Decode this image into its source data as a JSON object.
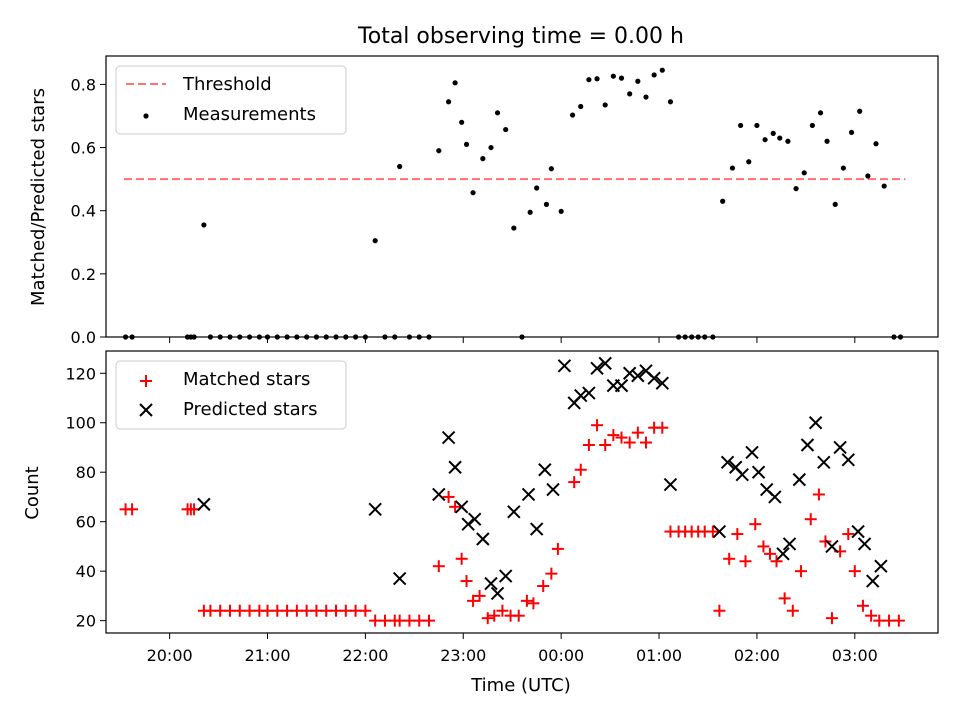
{
  "chart_data": [
    {
      "type": "scatter",
      "title": "Total observing time = 0.00 h",
      "ylabel": "Matched/Predicted stars",
      "xlabel": "",
      "xlim": [
        "19:21",
        "03:51"
      ],
      "ylim": [
        0,
        0.89
      ],
      "yticks": [
        0.0,
        0.2,
        0.4,
        0.6,
        0.8
      ],
      "ytick_labels": [
        "0.0",
        "0.2",
        "0.4",
        "0.6",
        "0.8"
      ],
      "legend": {
        "placement": "top-left",
        "entries": [
          "Threshold",
          "Measurements"
        ]
      },
      "threshold": {
        "name": "Threshold",
        "value": 0.5,
        "x_range": [
          "19:32",
          "03:31"
        ],
        "color": "#ff7070",
        "style": "dashed"
      },
      "series": [
        {
          "name": "Measurements",
          "color": "#000000",
          "points": [
            [
              "19:33",
              0.0
            ],
            [
              "19:37",
              0.0
            ],
            [
              "20:11",
              0.0
            ],
            [
              "20:13",
              0.0
            ],
            [
              "20:15",
              0.0
            ],
            [
              "20:21",
              0.355
            ],
            [
              "20:25",
              0.0
            ],
            [
              "20:31",
              0.0
            ],
            [
              "20:37",
              0.0
            ],
            [
              "20:43",
              0.0
            ],
            [
              "20:49",
              0.0
            ],
            [
              "20:55",
              0.0
            ],
            [
              "21:00",
              0.0
            ],
            [
              "21:06",
              0.0
            ],
            [
              "21:12",
              0.0
            ],
            [
              "21:18",
              0.0
            ],
            [
              "21:24",
              0.0
            ],
            [
              "21:30",
              0.0
            ],
            [
              "21:36",
              0.0
            ],
            [
              "21:42",
              0.0
            ],
            [
              "21:48",
              0.0
            ],
            [
              "21:54",
              0.0
            ],
            [
              "22:00",
              0.0
            ],
            [
              "22:06",
              0.305
            ],
            [
              "22:12",
              0.0
            ],
            [
              "22:18",
              0.0
            ],
            [
              "22:21",
              0.54
            ],
            [
              "22:27",
              0.0
            ],
            [
              "22:33",
              0.0
            ],
            [
              "22:39",
              0.0
            ],
            [
              "22:45",
              0.59
            ],
            [
              "22:51",
              0.745
            ],
            [
              "22:55",
              0.805
            ],
            [
              "22:59",
              0.68
            ],
            [
              "23:02",
              0.61
            ],
            [
              "23:06",
              0.457
            ],
            [
              "23:12",
              0.565
            ],
            [
              "23:17",
              0.6
            ],
            [
              "23:21",
              0.71
            ],
            [
              "23:26",
              0.657
            ],
            [
              "23:31",
              0.345
            ],
            [
              "23:36",
              0.0
            ],
            [
              "23:41",
              0.395
            ],
            [
              "23:45",
              0.472
            ],
            [
              "23:51",
              0.42
            ],
            [
              "23:54",
              0.533
            ],
            [
              "00:00",
              0.398
            ],
            [
              "00:07",
              0.703
            ],
            [
              "00:12",
              0.73
            ],
            [
              "00:17",
              0.815
            ],
            [
              "00:22",
              0.818
            ],
            [
              "00:27",
              0.735
            ],
            [
              "00:32",
              0.826
            ],
            [
              "00:37",
              0.82
            ],
            [
              "00:42",
              0.77
            ],
            [
              "00:47",
              0.81
            ],
            [
              "00:52",
              0.76
            ],
            [
              "00:57",
              0.83
            ],
            [
              "01:02",
              0.845
            ],
            [
              "01:07",
              0.745
            ],
            [
              "01:12",
              0.0
            ],
            [
              "01:16",
              0.0
            ],
            [
              "01:20",
              0.0
            ],
            [
              "01:24",
              0.0
            ],
            [
              "01:28",
              0.0
            ],
            [
              "01:33",
              0.0
            ],
            [
              "01:39",
              0.43
            ],
            [
              "01:45",
              0.535
            ],
            [
              "01:50",
              0.67
            ],
            [
              "01:55",
              0.555
            ],
            [
              "02:00",
              0.67
            ],
            [
              "02:05",
              0.625
            ],
            [
              "02:10",
              0.645
            ],
            [
              "02:14",
              0.63
            ],
            [
              "02:19",
              0.62
            ],
            [
              "02:24",
              0.47
            ],
            [
              "02:29",
              0.52
            ],
            [
              "02:34",
              0.67
            ],
            [
              "02:39",
              0.71
            ],
            [
              "02:43",
              0.62
            ],
            [
              "02:48",
              0.42
            ],
            [
              "02:53",
              0.535
            ],
            [
              "02:58",
              0.648
            ],
            [
              "03:03",
              0.715
            ],
            [
              "03:08",
              0.51
            ],
            [
              "03:13",
              0.612
            ],
            [
              "03:18",
              0.478
            ],
            [
              "03:24",
              0.0
            ],
            [
              "03:28",
              0.0
            ]
          ]
        }
      ]
    },
    {
      "type": "scatter",
      "title": "",
      "ylabel": "Count",
      "xlabel": "Time (UTC)",
      "xlim": [
        "19:21",
        "03:51"
      ],
      "ylim": [
        15,
        129
      ],
      "yticks": [
        20,
        40,
        60,
        80,
        100,
        120
      ],
      "xticks": [
        "20:00",
        "21:00",
        "22:00",
        "23:00",
        "00:00",
        "01:00",
        "02:00",
        "03:00"
      ],
      "legend": {
        "placement": "top-left",
        "entries": [
          "Matched stars",
          "Predicted stars"
        ]
      },
      "series": [
        {
          "name": "Matched stars",
          "marker": "plus",
          "color": "#ff0000",
          "points": [
            [
              "19:33",
              65
            ],
            [
              "19:37",
              65
            ],
            [
              "20:11",
              65
            ],
            [
              "20:13",
              65
            ],
            [
              "20:15",
              65
            ],
            [
              "20:21",
              24
            ],
            [
              "20:25",
              24
            ],
            [
              "20:31",
              24
            ],
            [
              "20:37",
              24
            ],
            [
              "20:43",
              24
            ],
            [
              "20:49",
              24
            ],
            [
              "20:55",
              24
            ],
            [
              "21:00",
              24
            ],
            [
              "21:06",
              24
            ],
            [
              "21:12",
              24
            ],
            [
              "21:18",
              24
            ],
            [
              "21:24",
              24
            ],
            [
              "21:30",
              24
            ],
            [
              "21:36",
              24
            ],
            [
              "21:42",
              24
            ],
            [
              "21:48",
              24
            ],
            [
              "21:54",
              24
            ],
            [
              "22:00",
              24
            ],
            [
              "22:06",
              20
            ],
            [
              "22:12",
              20
            ],
            [
              "22:18",
              20
            ],
            [
              "22:21",
              20
            ],
            [
              "22:27",
              20
            ],
            [
              "22:33",
              20
            ],
            [
              "22:39",
              20
            ],
            [
              "22:45",
              42
            ],
            [
              "22:51",
              70
            ],
            [
              "22:55",
              66
            ],
            [
              "22:59",
              45
            ],
            [
              "23:02",
              36
            ],
            [
              "23:06",
              28
            ],
            [
              "23:10",
              30
            ],
            [
              "23:15",
              21
            ],
            [
              "23:19",
              22
            ],
            [
              "23:24",
              24
            ],
            [
              "23:29",
              22
            ],
            [
              "23:34",
              22
            ],
            [
              "23:39",
              28
            ],
            [
              "23:43",
              27
            ],
            [
              "23:49",
              34
            ],
            [
              "23:54",
              39
            ],
            [
              "23:58",
              49
            ],
            [
              "00:08",
              76
            ],
            [
              "00:12",
              81
            ],
            [
              "00:17",
              91
            ],
            [
              "00:22",
              99
            ],
            [
              "00:27",
              91
            ],
            [
              "00:32",
              95
            ],
            [
              "00:37",
              94
            ],
            [
              "00:42",
              92
            ],
            [
              "00:47",
              96
            ],
            [
              "00:52",
              92
            ],
            [
              "00:57",
              98
            ],
            [
              "01:02",
              98
            ],
            [
              "01:07",
              56
            ],
            [
              "01:12",
              56
            ],
            [
              "01:16",
              56
            ],
            [
              "01:20",
              56
            ],
            [
              "01:24",
              56
            ],
            [
              "01:28",
              56
            ],
            [
              "01:33",
              56
            ],
            [
              "01:37",
              24
            ],
            [
              "01:43",
              45
            ],
            [
              "01:48",
              55
            ],
            [
              "01:53",
              44
            ],
            [
              "01:59",
              59
            ],
            [
              "02:04",
              50
            ],
            [
              "02:08",
              47
            ],
            [
              "02:12",
              44
            ],
            [
              "02:17",
              29
            ],
            [
              "02:22",
              24
            ],
            [
              "02:27",
              40
            ],
            [
              "02:33",
              61
            ],
            [
              "02:38",
              71
            ],
            [
              "02:42",
              52
            ],
            [
              "02:46",
              21
            ],
            [
              "02:51",
              48
            ],
            [
              "02:56",
              55
            ],
            [
              "03:00",
              40
            ],
            [
              "03:05",
              26
            ],
            [
              "03:10",
              22
            ],
            [
              "03:15",
              20
            ],
            [
              "03:21",
              20
            ],
            [
              "03:27",
              20
            ]
          ]
        },
        {
          "name": "Predicted stars",
          "marker": "x",
          "color": "#000000",
          "points": [
            [
              "20:21",
              67
            ],
            [
              "22:06",
              65
            ],
            [
              "22:21",
              37
            ],
            [
              "22:45",
              71
            ],
            [
              "22:51",
              94
            ],
            [
              "22:55",
              82
            ],
            [
              "22:59",
              66
            ],
            [
              "23:03",
              59
            ],
            [
              "23:07",
              61
            ],
            [
              "23:12",
              53
            ],
            [
              "23:17",
              35
            ],
            [
              "23:21",
              31
            ],
            [
              "23:26",
              38
            ],
            [
              "23:31",
              64
            ],
            [
              "23:40",
              71
            ],
            [
              "23:45",
              57
            ],
            [
              "23:50",
              81
            ],
            [
              "23:55",
              73
            ],
            [
              "00:02",
              123
            ],
            [
              "00:08",
              108
            ],
            [
              "00:12",
              111
            ],
            [
              "00:17",
              112
            ],
            [
              "00:22",
              122
            ],
            [
              "00:27",
              124
            ],
            [
              "00:32",
              115
            ],
            [
              "00:37",
              115
            ],
            [
              "00:42",
              120
            ],
            [
              "00:47",
              119
            ],
            [
              "00:52",
              121
            ],
            [
              "00:57",
              118
            ],
            [
              "01:02",
              116
            ],
            [
              "01:07",
              75
            ],
            [
              "01:37",
              56
            ],
            [
              "01:42",
              84
            ],
            [
              "01:47",
              82
            ],
            [
              "01:51",
              79
            ],
            [
              "01:57",
              88
            ],
            [
              "02:01",
              80
            ],
            [
              "02:06",
              73
            ],
            [
              "02:11",
              70
            ],
            [
              "02:16",
              47
            ],
            [
              "02:20",
              51
            ],
            [
              "02:26",
              77
            ],
            [
              "02:31",
              91
            ],
            [
              "02:36",
              100
            ],
            [
              "02:41",
              84
            ],
            [
              "02:46",
              50
            ],
            [
              "02:51",
              90
            ],
            [
              "02:56",
              85
            ],
            [
              "03:02",
              56
            ],
            [
              "03:06",
              51
            ],
            [
              "03:11",
              36
            ],
            [
              "03:16",
              42
            ]
          ]
        }
      ]
    }
  ]
}
